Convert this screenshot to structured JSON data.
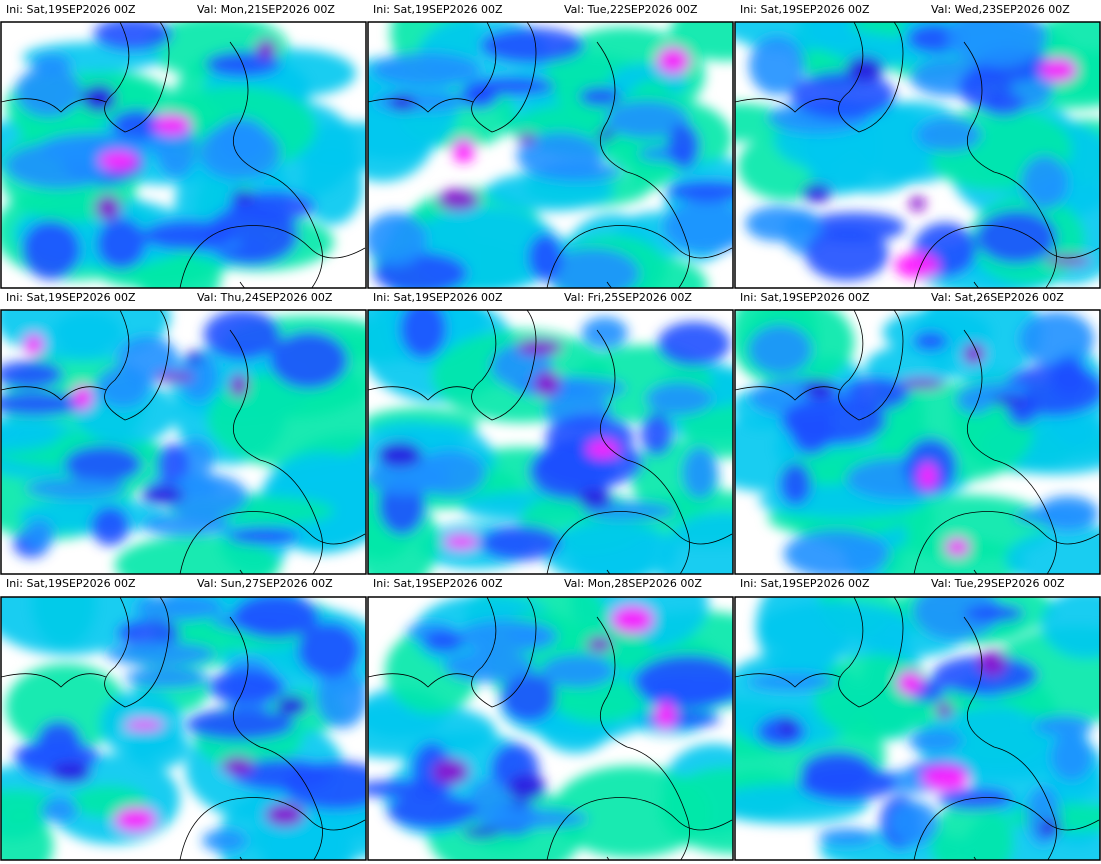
{
  "panels": [
    {
      "ini": "Ini: Sat,19SEP2026 00Z",
      "valid": "Val: Mon,21SEP2026 00Z"
    },
    {
      "ini": "Ini: Sat,19SEP2026 00Z",
      "valid": "Val: Tue,22SEP2026 00Z"
    },
    {
      "ini": "Ini: Sat,19SEP2026 00Z",
      "valid": "Val: Wed,23SEP2026 00Z"
    },
    {
      "ini": "Ini: Sat,19SEP2026 00Z",
      "valid": "Val: Thu,24SEP2026 00Z"
    },
    {
      "ini": "Ini: Sat,19SEP2026 00Z",
      "valid": "Val: Fri,25SEP2026 00Z"
    },
    {
      "ini": "Ini: Sat,19SEP2026 00Z",
      "valid": "Val: Sat,26SEP2026 00Z"
    },
    {
      "ini": "Ini: Sat,19SEP2026 00Z",
      "valid": "Val: Sun,27SEP2026 00Z"
    },
    {
      "ini": "Ini: Sat,19SEP2026 00Z",
      "valid": "Val: Mon,28SEP2026 00Z"
    },
    {
      "ini": "Ini: Sat,19SEP2026 00Z",
      "valid": "Val: Tue,29SEP2026 00Z"
    }
  ]
}
